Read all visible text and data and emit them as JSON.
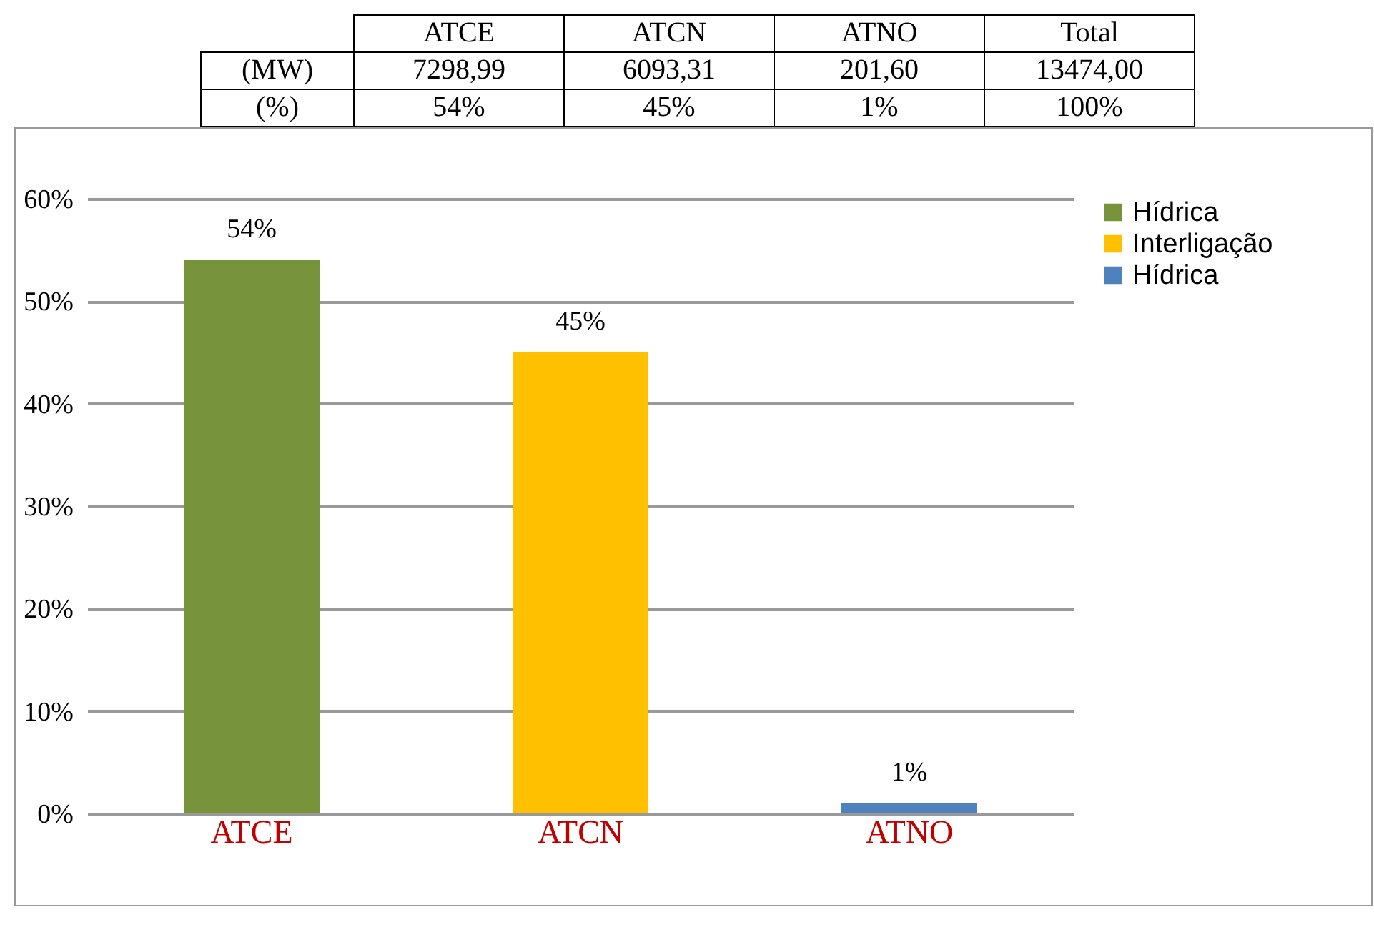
{
  "chart_data": [
    {
      "type": "other",
      "categories": [
        "ATCE",
        "ATCN",
        "ATNO",
        "Total"
      ],
      "series": [
        {
          "name": "(MW)",
          "values": [
            7298.99,
            6093.31,
            201.6,
            13474
          ],
          "value_labels": [
            "7298,99",
            "6093,31",
            "201,60",
            "13474,00"
          ]
        },
        {
          "name": "(%)",
          "values": [
            54,
            45,
            1,
            100
          ],
          "value_labels": [
            "54%",
            "45%",
            "1%",
            "100%"
          ]
        }
      ]
    },
    {
      "type": "bar",
      "categories": [
        "ATCE",
        "ATCN",
        "ATNO"
      ],
      "series": [
        {
          "name": "Hídrica",
          "color": "#77933c",
          "values": [
            54,
            null,
            null
          ],
          "value_labels": [
            "54%",
            null,
            null
          ]
        },
        {
          "name": "Interligação",
          "color": "#ffc000",
          "values": [
            null,
            45,
            null
          ],
          "value_labels": [
            null,
            "45%",
            null
          ]
        },
        {
          "name": "Hídrica",
          "color": "#4f81bd",
          "values": [
            null,
            null,
            1
          ],
          "value_labels": [
            null,
            null,
            "1%"
          ]
        }
      ],
      "ylim": [
        0,
        60
      ],
      "yticks": [
        {
          "value": 0,
          "label": "0%"
        },
        {
          "value": 10,
          "label": "10%"
        },
        {
          "value": 20,
          "label": "20%"
        },
        {
          "value": 30,
          "label": "30%"
        },
        {
          "value": 40,
          "label": "40%"
        },
        {
          "value": 50,
          "label": "50%"
        },
        {
          "value": 60,
          "label": "60%"
        }
      ],
      "grid": true,
      "legend": "right"
    }
  ]
}
